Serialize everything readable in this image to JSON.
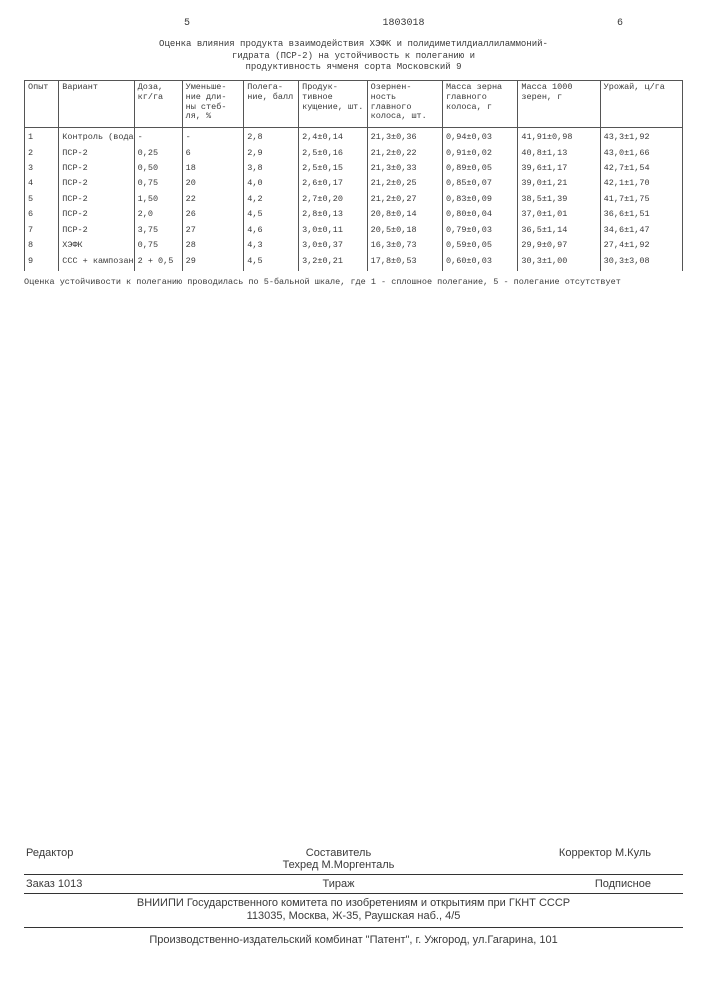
{
  "header": {
    "left_num": "5",
    "doc_num": "1803018",
    "right_num": "6"
  },
  "title_lines": [
    "Оценка влияния продукта взаимодействия ХЭФК и полидиметилдиаллиламмоний-",
    "гидрата (ПСР-2) на устойчивость к полеганию и",
    "продуктивность ячменя сорта Московский 9"
  ],
  "columns": [
    "Опыт",
    "Вариант",
    "Доза, кг/га",
    "Уменьше- ние дли- ны стеб- ля, %",
    "Полега- ние, балл",
    "Продук- тивное кущение, шт.",
    "Озернен- ность главного колоса, шт.",
    "Масса зерна главного колоса, г",
    "Масса 1000 зерен, г",
    "Урожай, ц/га"
  ],
  "rows": [
    [
      "1",
      "Контроль (вода)",
      "-",
      "-",
      "2,8",
      "2,4±0,14",
      "21,3±0,36",
      "0,94±0,03",
      "41,91±0,98",
      "43,3±1,92"
    ],
    [
      "2",
      "ПСР-2",
      "0,25",
      "6",
      "2,9",
      "2,5±0,16",
      "21,2±0,22",
      "0,91±0,02",
      "40,8±1,13",
      "43,0±1,66"
    ],
    [
      "3",
      "ПСР-2",
      "0,50",
      "18",
      "3,8",
      "2,5±0,15",
      "21,3±0,33",
      "0,89±0,05",
      "39,6±1,17",
      "42,7±1,54"
    ],
    [
      "4",
      "ПСР-2",
      "0,75",
      "20",
      "4,0",
      "2,6±0,17",
      "21,2±0,25",
      "0,85±0,07",
      "39,0±1,21",
      "42,1±1,70"
    ],
    [
      "5",
      "ПСР-2",
      "1,50",
      "22",
      "4,2",
      "2,7±0,20",
      "21,2±0,27",
      "0,83±0,09",
      "38,5±1,39",
      "41,7±1,75"
    ],
    [
      "6",
      "ПСР-2",
      "2,0",
      "26",
      "4,5",
      "2,8±0,13",
      "20,8±0,14",
      "0,80±0,04",
      "37,0±1,01",
      "36,6±1,51"
    ],
    [
      "7",
      "ПСР-2",
      "3,75",
      "27",
      "4,6",
      "3,0±0,11",
      "20,5±0,18",
      "0,79±0,03",
      "36,5±1,14",
      "34,6±1,47"
    ],
    [
      "8",
      "ХЭФК",
      "0,75",
      "28",
      "4,3",
      "3,0±0,37",
      "16,3±0,73",
      "0,59±0,05",
      "29,9±0,97",
      "27,4±1,92"
    ],
    [
      "9",
      "ССС + кампозан",
      "2 + 0,5",
      "29",
      "4,5",
      "3,2±0,21",
      "17,8±0,53",
      "0,60±0,03",
      "30,3±1,00",
      "30,3±3,08"
    ]
  ],
  "footnote": "Оценка устойчивости к полеганию проводилась по 5-бальной шкале, где 1 - сплошное полегание, 5 - полегание отсутствует",
  "colophon": {
    "row1": {
      "editor_label": "Редактор",
      "compiler": "Составитель",
      "techred": "Техред М.Моргенталь",
      "corrector": "Корректор  М.Куль"
    },
    "row2": {
      "order": "Заказ 1013",
      "tirazh": "Тираж",
      "podpis": "Подписное"
    },
    "institute": "ВНИИПИ Государственного комитета по изобретениям и открытиям при ГКНТ СССР",
    "address": "113035, Москва, Ж-35, Раушская наб., 4/5",
    "producer": "Производственно-издательский комбинат \"Патент\", г. Ужгород, ул.Гагарина, 101"
  }
}
